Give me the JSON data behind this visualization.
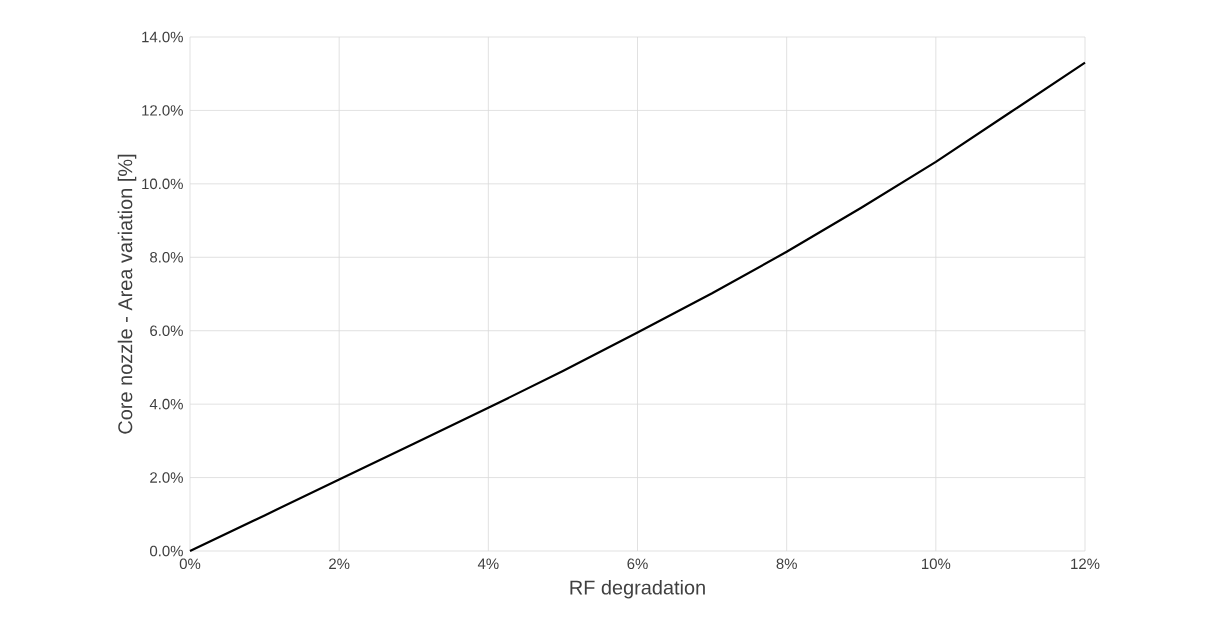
{
  "chart_data": {
    "type": "line",
    "xlabel": "RF degradation",
    "ylabel": "Core nozzle - Area variation [%]",
    "x": [
      0,
      1,
      2,
      3,
      4,
      5,
      6,
      7,
      8,
      9,
      10,
      11,
      12
    ],
    "series": [
      {
        "color": "#000000",
        "values": [
          0,
          0.97,
          1.95,
          2.92,
          3.9,
          4.9,
          5.95,
          7.02,
          8.15,
          9.35,
          10.6,
          11.95,
          13.3
        ]
      }
    ],
    "xlim": [
      0,
      12
    ],
    "ylim": [
      0,
      14
    ],
    "xticks": [
      {
        "value": 0,
        "label": "0%"
      },
      {
        "value": 2,
        "label": "2%"
      },
      {
        "value": 4,
        "label": "4%"
      },
      {
        "value": 6,
        "label": "6%"
      },
      {
        "value": 8,
        "label": "8%"
      },
      {
        "value": 10,
        "label": "10%"
      },
      {
        "value": 12,
        "label": "12%"
      }
    ],
    "yticks": [
      {
        "value": 0,
        "label": "0.0%"
      },
      {
        "value": 2,
        "label": "2.0%"
      },
      {
        "value": 4,
        "label": "4.0%"
      },
      {
        "value": 6,
        "label": "6.0%"
      },
      {
        "value": 8,
        "label": "8.0%"
      },
      {
        "value": 10,
        "label": "10.0%"
      },
      {
        "value": 12,
        "label": "12.0%"
      },
      {
        "value": 14,
        "label": "14.0%"
      }
    ],
    "grid": true,
    "marker": "none",
    "line_style": "solid"
  }
}
